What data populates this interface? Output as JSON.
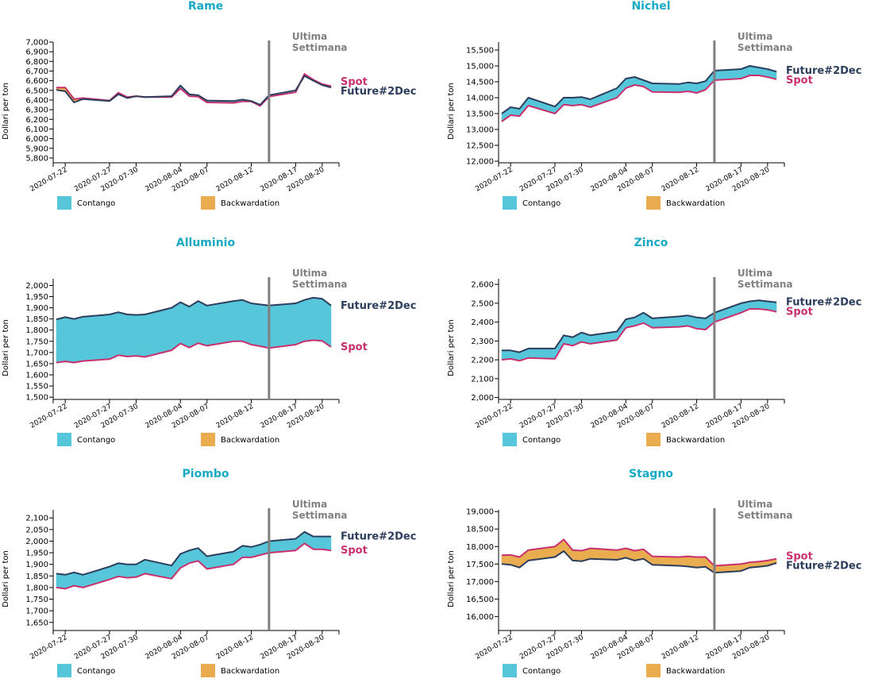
{
  "colors": {
    "title": "#17a9c4",
    "contango": "#56c6db",
    "backwardation": "#e9ad50",
    "future_line": "#2c3e5c",
    "spot_line": "#c8306e",
    "future_label": "#2c3e5c",
    "spot_label": "#c8306e",
    "marker_line": "#808080",
    "marker_text": "#808080"
  },
  "common": {
    "ylabel": "Dollari per ton",
    "marker_label_line1": "Ultima",
    "marker_label_line2": "Settimana",
    "marker_date": "2020-08-14",
    "future_name": "Future#2Dec",
    "spot_name": "Spot",
    "legend": [
      {
        "label": "Contango",
        "color_key": "contango"
      },
      {
        "label": "Backwardation",
        "color_key": "backwardation"
      }
    ],
    "xticks": [
      "2020-07-22",
      "2020-07-27",
      "2020-07-30",
      "2020-08-04",
      "2020-08-07",
      "2020-08-12",
      "2020-08-17",
      "2020-08-20"
    ]
  },
  "chart_data": [
    {
      "type": "area",
      "title": "Rame",
      "ylabel": "Dollari per ton",
      "ylim": [
        5750,
        7000
      ],
      "yticks": [
        5800,
        5900,
        6000,
        6100,
        6200,
        6300,
        6400,
        6500,
        6600,
        6700,
        6800,
        6900,
        7000
      ],
      "x": [
        "2020-07-21",
        "2020-07-22",
        "2020-07-23",
        "2020-07-24",
        "2020-07-27",
        "2020-07-28",
        "2020-07-29",
        "2020-07-30",
        "2020-07-31",
        "2020-08-03",
        "2020-08-04",
        "2020-08-05",
        "2020-08-06",
        "2020-08-07",
        "2020-08-10",
        "2020-08-11",
        "2020-08-12",
        "2020-08-13",
        "2020-08-14",
        "2020-08-17",
        "2020-08-18",
        "2020-08-19",
        "2020-08-20",
        "2020-08-21"
      ],
      "series": [
        {
          "name": "Future#2Dec",
          "values": [
            6505,
            6490,
            6375,
            6410,
            6390,
            6460,
            6420,
            6440,
            6430,
            6440,
            6550,
            6460,
            6450,
            6395,
            6390,
            6405,
            6390,
            6350,
            6450,
            6500,
            6650,
            6600,
            6555,
            6530
          ]
        },
        {
          "name": "Spot",
          "values": [
            6530,
            6530,
            6410,
            6420,
            6395,
            6475,
            6430,
            6440,
            6430,
            6430,
            6520,
            6440,
            6435,
            6375,
            6370,
            6385,
            6385,
            6340,
            6435,
            6480,
            6670,
            6610,
            6565,
            6545
          ]
        }
      ]
    },
    {
      "type": "area",
      "title": "Nichel",
      "ylabel": "Dollari per ton",
      "ylim": [
        11950,
        15750
      ],
      "yticks": [
        12000,
        12500,
        13000,
        13500,
        14000,
        14500,
        15000,
        15500
      ],
      "x": [
        "2020-07-21",
        "2020-07-22",
        "2020-07-23",
        "2020-07-24",
        "2020-07-27",
        "2020-07-28",
        "2020-07-29",
        "2020-07-30",
        "2020-07-31",
        "2020-08-03",
        "2020-08-04",
        "2020-08-05",
        "2020-08-06",
        "2020-08-07",
        "2020-08-10",
        "2020-08-11",
        "2020-08-12",
        "2020-08-13",
        "2020-08-14",
        "2020-08-17",
        "2020-08-18",
        "2020-08-19",
        "2020-08-20",
        "2020-08-21"
      ],
      "series": [
        {
          "name": "Future#2Dec",
          "values": [
            13500,
            13700,
            13650,
            14000,
            13720,
            14000,
            14000,
            14020,
            13950,
            14300,
            14600,
            14650,
            14550,
            14450,
            14430,
            14480,
            14450,
            14520,
            14850,
            14900,
            15000,
            14950,
            14900,
            14820
          ]
        },
        {
          "name": "Spot",
          "values": [
            13250,
            13450,
            13420,
            13750,
            13500,
            13780,
            13750,
            13780,
            13700,
            14000,
            14300,
            14400,
            14350,
            14180,
            14170,
            14200,
            14150,
            14250,
            14550,
            14600,
            14700,
            14700,
            14650,
            14580
          ]
        }
      ]
    },
    {
      "type": "area",
      "title": "Alluminio",
      "ylabel": "Dollari per ton",
      "ylim": [
        1490,
        2030
      ],
      "yticks": [
        1500,
        1550,
        1600,
        1650,
        1700,
        1750,
        1800,
        1850,
        1900,
        1950,
        2000
      ],
      "x": [
        "2020-07-21",
        "2020-07-22",
        "2020-07-23",
        "2020-07-24",
        "2020-07-27",
        "2020-07-28",
        "2020-07-29",
        "2020-07-30",
        "2020-07-31",
        "2020-08-03",
        "2020-08-04",
        "2020-08-05",
        "2020-08-06",
        "2020-08-07",
        "2020-08-10",
        "2020-08-11",
        "2020-08-12",
        "2020-08-13",
        "2020-08-14",
        "2020-08-17",
        "2020-08-18",
        "2020-08-19",
        "2020-08-20",
        "2020-08-21"
      ],
      "series": [
        {
          "name": "Future#2Dec",
          "values": [
            1848,
            1858,
            1850,
            1860,
            1870,
            1880,
            1870,
            1868,
            1870,
            1900,
            1925,
            1905,
            1930,
            1910,
            1930,
            1935,
            1920,
            1915,
            1910,
            1920,
            1935,
            1945,
            1940,
            1910
          ]
        },
        {
          "name": "Spot",
          "values": [
            1655,
            1660,
            1655,
            1662,
            1670,
            1688,
            1682,
            1685,
            1680,
            1710,
            1740,
            1722,
            1742,
            1730,
            1750,
            1750,
            1735,
            1728,
            1720,
            1735,
            1750,
            1755,
            1752,
            1725
          ]
        }
      ]
    },
    {
      "type": "area",
      "title": "Zinco",
      "ylabel": "Dollari per ton",
      "ylim": [
        1990,
        2630
      ],
      "yticks": [
        2000,
        2100,
        2200,
        2300,
        2400,
        2500,
        2600
      ],
      "x": [
        "2020-07-21",
        "2020-07-22",
        "2020-07-23",
        "2020-07-24",
        "2020-07-27",
        "2020-07-28",
        "2020-07-29",
        "2020-07-30",
        "2020-07-31",
        "2020-08-03",
        "2020-08-04",
        "2020-08-05",
        "2020-08-06",
        "2020-08-07",
        "2020-08-10",
        "2020-08-11",
        "2020-08-12",
        "2020-08-13",
        "2020-08-14",
        "2020-08-17",
        "2020-08-18",
        "2020-08-19",
        "2020-08-20",
        "2020-08-21"
      ],
      "series": [
        {
          "name": "Future#2Dec",
          "values": [
            2250,
            2250,
            2240,
            2260,
            2260,
            2330,
            2320,
            2345,
            2330,
            2350,
            2415,
            2425,
            2450,
            2420,
            2430,
            2435,
            2425,
            2420,
            2450,
            2500,
            2510,
            2515,
            2510,
            2505
          ]
        },
        {
          "name": "Spot",
          "values": [
            2200,
            2205,
            2195,
            2210,
            2205,
            2285,
            2275,
            2295,
            2285,
            2305,
            2370,
            2380,
            2395,
            2370,
            2375,
            2380,
            2365,
            2360,
            2400,
            2450,
            2470,
            2470,
            2465,
            2455
          ]
        }
      ]
    },
    {
      "type": "area",
      "title": "Piombo",
      "ylabel": "Dollari per ton",
      "ylim": [
        1615,
        2135
      ],
      "yticks": [
        1650,
        1700,
        1750,
        1800,
        1850,
        1900,
        1950,
        2000,
        2050,
        2100
      ],
      "x": [
        "2020-07-21",
        "2020-07-22",
        "2020-07-23",
        "2020-07-24",
        "2020-07-27",
        "2020-07-28",
        "2020-07-29",
        "2020-07-30",
        "2020-07-31",
        "2020-08-03",
        "2020-08-04",
        "2020-08-05",
        "2020-08-06",
        "2020-08-07",
        "2020-08-10",
        "2020-08-11",
        "2020-08-12",
        "2020-08-13",
        "2020-08-14",
        "2020-08-17",
        "2020-08-18",
        "2020-08-19",
        "2020-08-20",
        "2020-08-21"
      ],
      "series": [
        {
          "name": "Future#2Dec",
          "values": [
            1860,
            1855,
            1865,
            1855,
            1890,
            1905,
            1900,
            1900,
            1920,
            1895,
            1945,
            1960,
            1970,
            1935,
            1955,
            1980,
            1975,
            1985,
            2000,
            2010,
            2040,
            2020,
            2020,
            2020
          ]
        },
        {
          "name": "Spot",
          "values": [
            1800,
            1795,
            1808,
            1800,
            1835,
            1848,
            1842,
            1845,
            1860,
            1838,
            1885,
            1905,
            1915,
            1880,
            1900,
            1930,
            1930,
            1940,
            1950,
            1960,
            1990,
            1965,
            1965,
            1960
          ]
        }
      ]
    },
    {
      "type": "area",
      "title": "Stagno",
      "ylabel": "Dollari per ton",
      "ylim": [
        15600,
        19050
      ],
      "yticks": [
        16000,
        16500,
        17000,
        17500,
        18000,
        18500,
        19000
      ],
      "x": [
        "2020-07-21",
        "2020-07-22",
        "2020-07-23",
        "2020-07-24",
        "2020-07-27",
        "2020-07-28",
        "2020-07-29",
        "2020-07-30",
        "2020-07-31",
        "2020-08-03",
        "2020-08-04",
        "2020-08-05",
        "2020-08-06",
        "2020-08-07",
        "2020-08-10",
        "2020-08-11",
        "2020-08-12",
        "2020-08-13",
        "2020-08-14",
        "2020-08-17",
        "2020-08-18",
        "2020-08-19",
        "2020-08-20",
        "2020-08-21"
      ],
      "series": [
        {
          "name": "Future#2Dec",
          "values": [
            17500,
            17480,
            17400,
            17600,
            17700,
            17870,
            17600,
            17580,
            17650,
            17620,
            17680,
            17600,
            17650,
            17480,
            17450,
            17430,
            17400,
            17420,
            17250,
            17300,
            17400,
            17420,
            17450,
            17530
          ]
        },
        {
          "name": "Spot",
          "values": [
            17750,
            17760,
            17700,
            17900,
            18000,
            18200,
            17900,
            17880,
            17950,
            17900,
            17950,
            17880,
            17920,
            17720,
            17700,
            17720,
            17700,
            17700,
            17450,
            17500,
            17550,
            17570,
            17600,
            17650
          ]
        }
      ]
    }
  ]
}
